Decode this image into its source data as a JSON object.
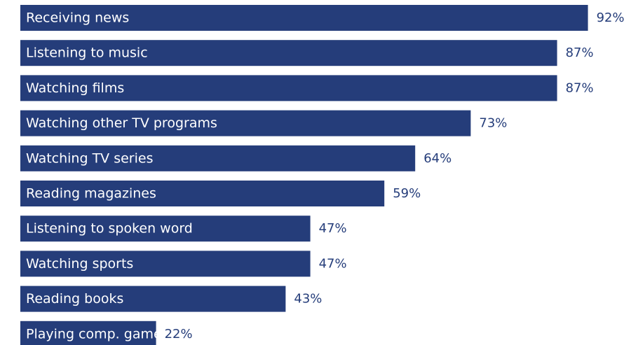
{
  "chart_data": {
    "type": "bar",
    "orientation": "horizontal",
    "categories": [
      "Receiving news",
      "Listening to music",
      "Watching films",
      "Watching other TV programs",
      "Watching TV series",
      "Reading magazines",
      "Listening to spoken word",
      "Watching sports",
      "Reading books",
      "Playing comp. games"
    ],
    "values": [
      92,
      87,
      87,
      73,
      64,
      59,
      47,
      47,
      43,
      22
    ],
    "value_labels": [
      "92%",
      "87%",
      "87%",
      "73%",
      "64%",
      "59%",
      "47%",
      "47%",
      "43%",
      "22%"
    ],
    "unit": "%",
    "xlim": [
      0,
      100
    ],
    "grid": false,
    "legend": "none",
    "colors": {
      "bar": "#253d7a",
      "bar_text": "#ffffff",
      "value_text": "#253d7a"
    }
  }
}
